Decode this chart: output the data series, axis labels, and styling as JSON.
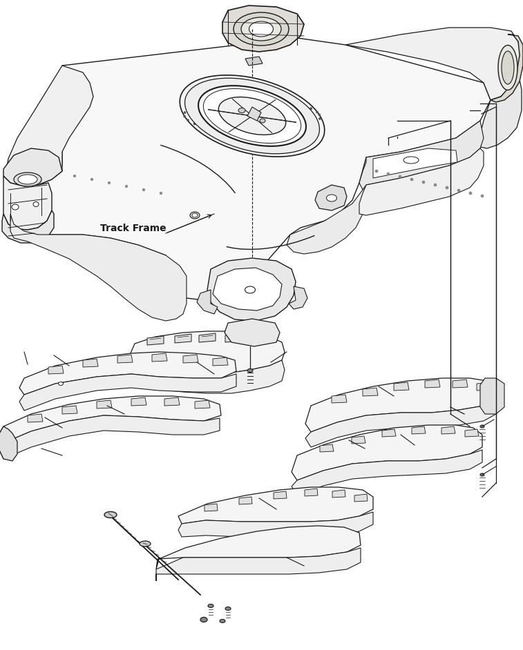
{
  "background_color": "#ffffff",
  "label_track_frame": "Track Frame",
  "label_font_size": 10,
  "line_color": "#1a1a1a",
  "line_width": 0.9,
  "fig_width": 7.57,
  "fig_height": 9.42,
  "dpi": 100
}
